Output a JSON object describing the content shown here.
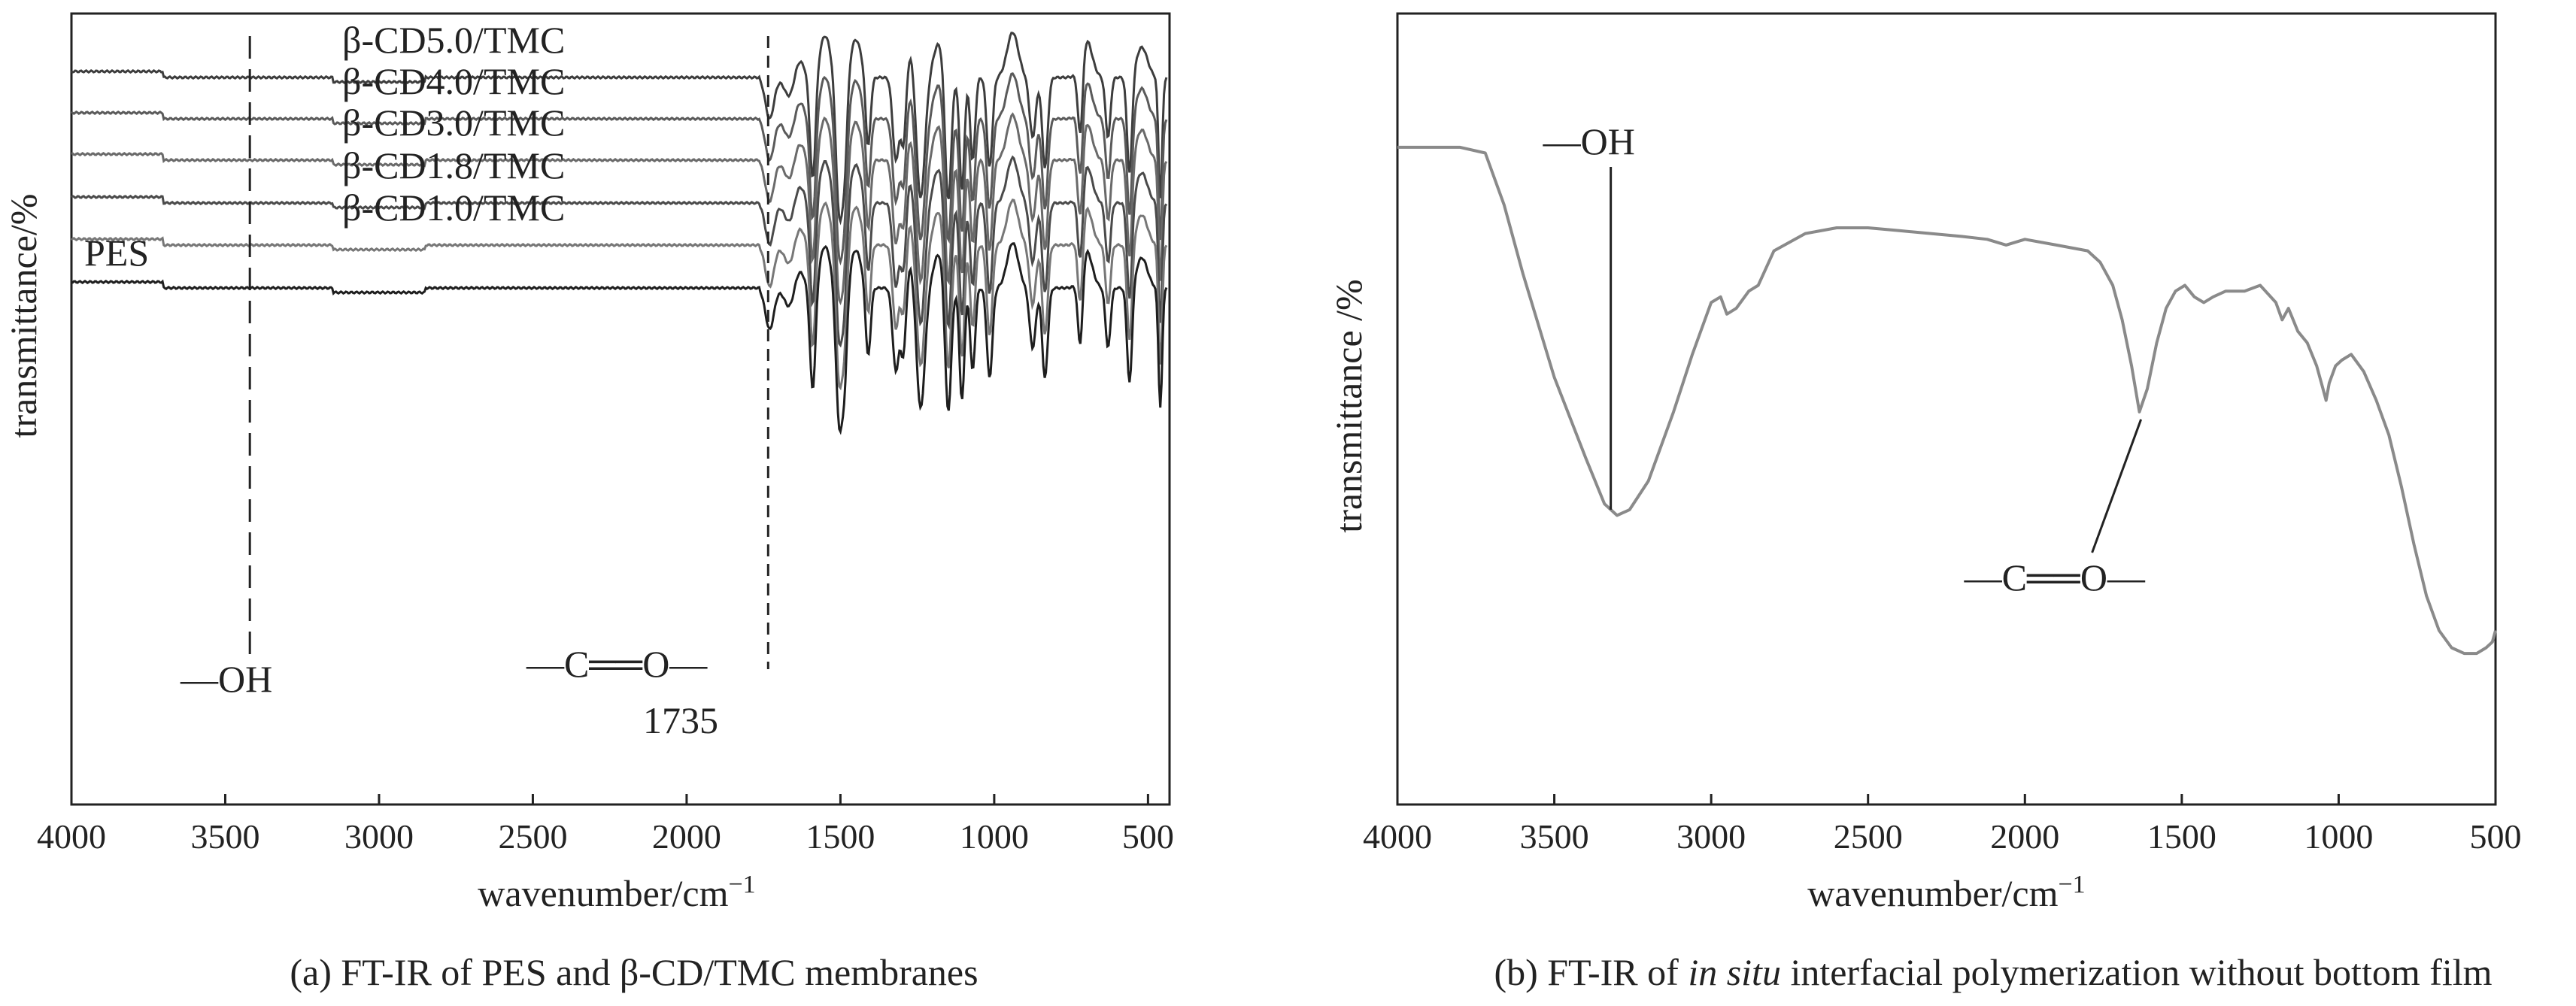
{
  "chart_data": [
    {
      "type": "line",
      "panel": "a",
      "caption_prefix": "(a) FT-IR of",
      "caption_main": "PES and β-CD/TMC membranes",
      "xlabel": "wavenumber/cm",
      "xlabel_sup": "−1",
      "ylabel": "transmittance/%",
      "xlim": [
        4000,
        430
      ],
      "x_reversed": true,
      "xticks": [
        4000,
        3500,
        3000,
        2500,
        2000,
        1500,
        1000,
        500
      ],
      "grid": false,
      "series": [
        {
          "name": "β-CD5.0/TMC",
          "offset": 5
        },
        {
          "name": "β-CD4.0/TMC",
          "offset": 4
        },
        {
          "name": "β-CD3.0/TMC",
          "offset": 3
        },
        {
          "name": "β-CD1.8/TMC",
          "offset": 2
        },
        {
          "name": "β-CD1.0/TMC",
          "offset": 1
        },
        {
          "name": "PES",
          "offset": 0
        }
      ],
      "annotations": [
        {
          "label": "OH",
          "prefix": "—",
          "x": 3420,
          "style": "dashed"
        },
        {
          "label": "C══O",
          "prefix": "—",
          "suffix": "—",
          "value_label": "1735",
          "x": 1735,
          "style": "dashed"
        }
      ]
    },
    {
      "type": "line",
      "panel": "b",
      "caption_prefix": "(b)  FT-IR of",
      "caption_italic": "in situ",
      "caption_rest": "interfacial polymerization without bottom film",
      "xlabel": "wavenumber/cm",
      "xlabel_sup": "−1",
      "ylabel": "transmittance /%",
      "xlim": [
        4000,
        500
      ],
      "x_reversed": true,
      "xticks": [
        4000,
        3500,
        3000,
        2500,
        2000,
        1500,
        1000,
        500
      ],
      "grid": false,
      "series": [
        {
          "x": [
            4000,
            3800,
            3720,
            3660,
            3600,
            3500,
            3400,
            3340,
            3300,
            3260,
            3200,
            3120,
            3060,
            3000,
            2970,
            2950,
            2920,
            2880,
            2850,
            2800,
            2700,
            2600,
            2500,
            2400,
            2300,
            2200,
            2120,
            2060,
            2000,
            1900,
            1800,
            1760,
            1720,
            1690,
            1660,
            1635,
            1610,
            1580,
            1550,
            1520,
            1490,
            1460,
            1430,
            1400,
            1360,
            1300,
            1250,
            1200,
            1180,
            1160,
            1130,
            1100,
            1070,
            1050,
            1040,
            1030,
            1010,
            990,
            960,
            920,
            880,
            840,
            800,
            760,
            720,
            680,
            640,
            600,
            560,
            530,
            510,
            500
          ],
          "y": [
            94,
            94,
            93,
            84,
            72,
            54,
            40,
            32,
            30,
            31,
            36,
            48,
            58,
            67,
            68,
            65,
            66,
            69,
            70,
            76,
            79,
            80,
            80,
            79.5,
            79,
            78.5,
            78,
            77,
            78,
            77,
            76,
            74,
            70,
            64,
            56,
            48,
            52,
            60,
            66,
            69,
            70,
            68,
            67,
            68,
            69,
            69,
            70,
            67,
            64,
            66,
            62,
            60,
            56,
            52,
            50,
            53,
            56,
            57,
            58,
            55,
            50,
            44,
            35,
            25,
            16,
            10,
            7,
            6,
            6,
            7,
            8,
            10
          ]
        }
      ],
      "annotations": [
        {
          "label": "OH",
          "prefix": "—",
          "x": 3320
        },
        {
          "label": "C══O",
          "prefix": "—",
          "suffix": "—",
          "x": 1630
        }
      ]
    }
  ]
}
